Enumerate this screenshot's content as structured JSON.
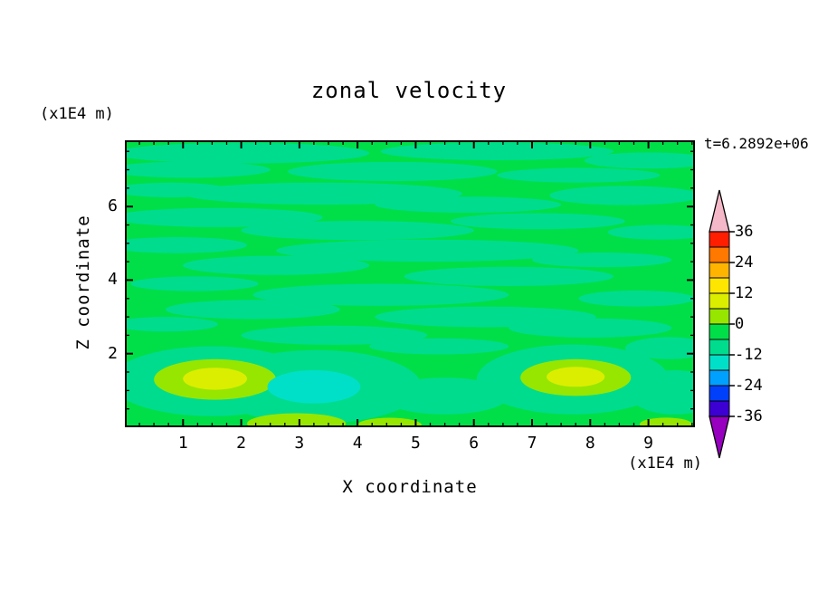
{
  "title": "zonal velocity",
  "time_label": "t=6.2892e+06",
  "y_axis_unit": "(x1E4 m)",
  "x_axis_unit": "(x1E4 m)",
  "x_axis_label": "X coordinate",
  "y_axis_label": "Z coordinate",
  "x_tick_labels": [
    "1",
    "2",
    "3",
    "4",
    "5",
    "6",
    "7",
    "8",
    "9"
  ],
  "y_tick_labels": [
    "2",
    "4",
    "6"
  ],
  "colorbar": {
    "labels": [
      "36",
      "24",
      "12",
      "0",
      "-12",
      "-24",
      "-36"
    ],
    "bands": [
      "#FF1E00",
      "#FF7800",
      "#FFB400",
      "#FFE600",
      "#DCEE00",
      "#96E600",
      "#00DF48",
      "#00DC8E",
      "#00E0C8",
      "#00A0FF",
      "#0040FA",
      "#3C00D2"
    ],
    "arrow_top": "#F4B8C8",
    "arrow_bottom": "#9800C0"
  },
  "chart_data": {
    "type": "heatmap",
    "subtype": "filled-contour",
    "title": "zonal velocity",
    "xlabel": "X coordinate",
    "ylabel": "Z coordinate",
    "x_unit": "(x1E4 m)",
    "y_unit": "(x1E4 m)",
    "time_annotation": "t=6.2892e+06",
    "x_range": [
      0,
      9.8
    ],
    "z_range": [
      0,
      7.8
    ],
    "x_ticks": [
      1,
      2,
      3,
      4,
      5,
      6,
      7,
      8,
      9
    ],
    "z_ticks": [
      2,
      4,
      6
    ],
    "contour_interval": 6,
    "colorbar_labeled_levels": [
      36,
      24,
      12,
      0,
      -12,
      -24,
      -36
    ],
    "colorbar_range": [
      -36,
      36
    ],
    "legend_position": "right",
    "grid": false,
    "palette": {
      "bg": "#00DF48",
      "sg": "#00DC8E",
      "cy": "#00E0C8",
      "yg": "#96E600",
      "yl": "#DCEE00"
    },
    "background_value": "field mostly near 0 (green band 0 to -6)",
    "features": [
      "mottled horizontal streaks of 0 to -12 (sea-green) throughout interior",
      "weak positive blob (+0 to +12, yellow-green) near bottom at x~1.5, z~1.3",
      "weak negative blob (-12 to -18, cyan) near bottom at x~3.2, z~1.1",
      "weak positive blob (+0 to +12, yellow-green) near bottom at x~7.7, z~1.3",
      "thin positive (yellow-green) patches along bottom boundary near x~3 and x~4.5"
    ],
    "field": {
      "patches": [
        [
          2.0,
          7.45,
          2.2,
          0.28,
          "sg"
        ],
        [
          6.4,
          7.5,
          2.0,
          0.24,
          "sg"
        ],
        [
          9.0,
          7.25,
          1.1,
          0.22,
          "sg"
        ],
        [
          1.1,
          7.0,
          1.4,
          0.22,
          "sg"
        ],
        [
          4.6,
          6.95,
          1.8,
          0.26,
          "sg"
        ],
        [
          7.8,
          6.85,
          1.4,
          0.2,
          "sg"
        ],
        [
          0.8,
          6.45,
          1.0,
          0.2,
          "sg"
        ],
        [
          3.4,
          6.35,
          2.4,
          0.3,
          "sg"
        ],
        [
          8.6,
          6.3,
          1.3,
          0.26,
          "sg"
        ],
        [
          5.9,
          6.05,
          1.6,
          0.22,
          "sg"
        ],
        [
          1.6,
          5.7,
          1.8,
          0.26,
          "sg"
        ],
        [
          7.1,
          5.6,
          1.5,
          0.22,
          "sg"
        ],
        [
          4.0,
          5.35,
          2.0,
          0.26,
          "sg"
        ],
        [
          9.2,
          5.3,
          0.9,
          0.2,
          "sg"
        ],
        [
          0.9,
          4.95,
          1.2,
          0.22,
          "sg"
        ],
        [
          5.2,
          4.8,
          2.6,
          0.3,
          "sg"
        ],
        [
          8.2,
          4.55,
          1.2,
          0.2,
          "sg"
        ],
        [
          2.6,
          4.4,
          1.6,
          0.26,
          "sg"
        ],
        [
          6.6,
          4.1,
          1.8,
          0.26,
          "sg"
        ],
        [
          1.2,
          3.9,
          1.1,
          0.2,
          "sg"
        ],
        [
          4.4,
          3.6,
          2.2,
          0.3,
          "sg"
        ],
        [
          8.8,
          3.5,
          1.0,
          0.22,
          "sg"
        ],
        [
          2.2,
          3.2,
          1.5,
          0.26,
          "sg"
        ],
        [
          6.2,
          3.0,
          1.9,
          0.28,
          "sg"
        ],
        [
          0.7,
          2.8,
          0.9,
          0.2,
          "sg"
        ],
        [
          8.0,
          2.7,
          1.4,
          0.26,
          "sg"
        ],
        [
          3.6,
          2.5,
          1.6,
          0.26,
          "sg"
        ],
        [
          5.4,
          2.2,
          1.2,
          0.22,
          "sg"
        ],
        [
          9.35,
          2.15,
          0.75,
          0.3,
          "sg"
        ],
        [
          1.5,
          1.25,
          1.75,
          0.95,
          "sg"
        ],
        [
          3.3,
          1.1,
          1.8,
          1.0,
          "sg"
        ],
        [
          7.7,
          1.3,
          1.65,
          0.95,
          "sg"
        ],
        [
          5.5,
          0.85,
          1.1,
          0.5,
          "sg"
        ],
        [
          9.45,
          0.95,
          0.8,
          0.6,
          "sg"
        ],
        [
          1.55,
          1.3,
          1.05,
          0.55,
          "yg"
        ],
        [
          1.55,
          1.32,
          0.55,
          0.3,
          "yl"
        ],
        [
          3.25,
          1.1,
          0.8,
          0.45,
          "cy"
        ],
        [
          7.75,
          1.35,
          0.95,
          0.5,
          "yg"
        ],
        [
          7.75,
          1.37,
          0.5,
          0.27,
          "yl"
        ],
        [
          2.95,
          0.1,
          0.85,
          0.28,
          "yg"
        ],
        [
          4.55,
          0.06,
          0.55,
          0.2,
          "yg"
        ],
        [
          9.3,
          0.08,
          0.45,
          0.18,
          "yg"
        ]
      ]
    }
  }
}
